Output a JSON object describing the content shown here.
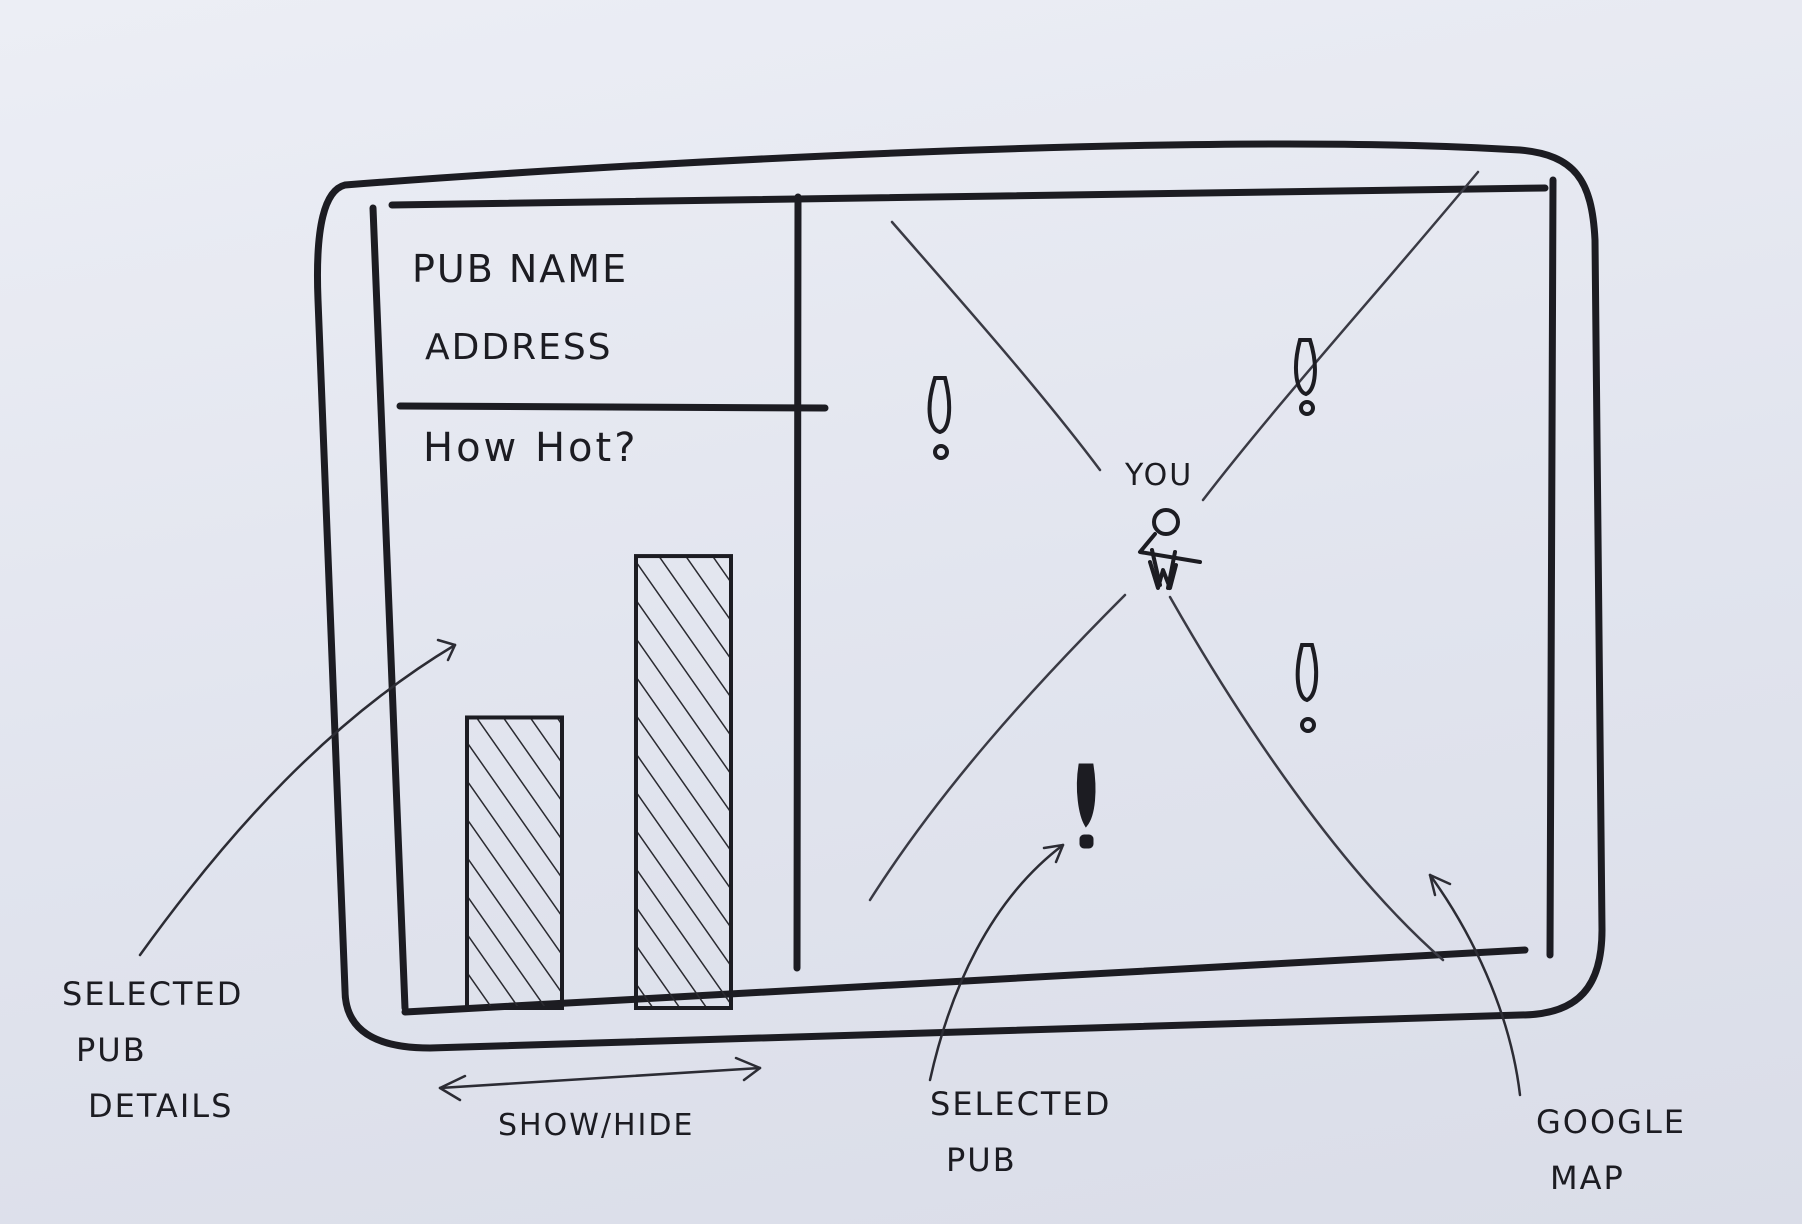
{
  "details_panel": {
    "pub_name_label": "PuB NAME",
    "address_label": "ADDRESS",
    "heat_question": "How Hot?"
  },
  "chart_data": {
    "type": "bar",
    "categories": [
      "",
      ""
    ],
    "values": [
      2.7,
      4.2
    ],
    "title": "How Hot?",
    "xlabel": "",
    "ylabel": "",
    "ylim": [
      0,
      5
    ]
  },
  "map": {
    "user_label": "YOU",
    "pub_marker_icon": "exclamation-icon",
    "selected_marker_icon": "exclamation-filled-icon"
  },
  "annotations": {
    "selected_pub_details": [
      "SELECTED",
      "PUB",
      "DETAILS"
    ],
    "show_hide": "SHOW/HIDE",
    "selected_pub": [
      "SELECTED",
      "PUB"
    ],
    "google_map": [
      "GOOGLE",
      "MAP"
    ]
  },
  "colors": {
    "ink": "#1c1c22",
    "paper": "#e3e6ef",
    "hatch": "#2a2a30"
  }
}
